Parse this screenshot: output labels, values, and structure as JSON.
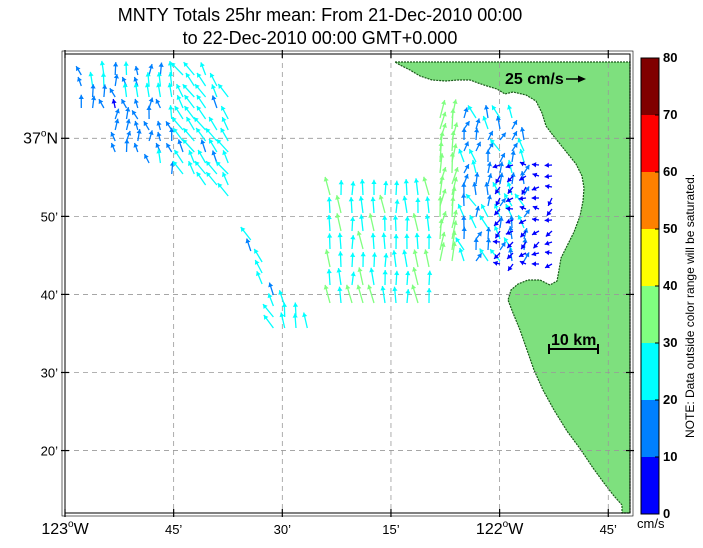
{
  "title": {
    "line1": "MNTY Totals 25hr mean: From 21-Dec-2010 00:00",
    "line2": "to 22-Dec-2010 00:00 GMT+0.000"
  },
  "axes": {
    "x_ticks": [
      {
        "lon": -123.0,
        "label": "123",
        "deg": "o",
        "hemi": "W"
      },
      {
        "lon": -122.75,
        "label": "45’"
      },
      {
        "lon": -122.5,
        "label": "30’"
      },
      {
        "lon": -122.25,
        "label": "15’"
      },
      {
        "lon": -122.0,
        "label": "122",
        "deg": "o",
        "hemi": "W"
      },
      {
        "lon": -121.75,
        "label": "45’"
      }
    ],
    "y_ticks": [
      {
        "lat": 37.0,
        "label": "37",
        "deg": "o",
        "hemi": "N"
      },
      {
        "lat": 36.8333,
        "label": "50’"
      },
      {
        "lat": 36.6667,
        "label": "40’"
      },
      {
        "lat": 36.5,
        "label": "30’"
      },
      {
        "lat": 36.3333,
        "label": "20’"
      }
    ],
    "lon_range": [
      -123.0,
      -121.7
    ],
    "lat_range": [
      36.2,
      37.18
    ],
    "grid": true
  },
  "scale_labels": {
    "speed": "25 cm/s",
    "distance": "10 km"
  },
  "colorbar": {
    "unit": "cm/s",
    "ticks": [
      "0",
      "10",
      "20",
      "30",
      "40",
      "50",
      "60",
      "70",
      "80"
    ],
    "colors": [
      "#0000ff",
      "#0080ff",
      "#00ffff",
      "#80ff80",
      "#ffff00",
      "#ff8000",
      "#ff0000",
      "#800000"
    ],
    "note": "NOTE: Data outside color range will be saturated."
  },
  "land_color": "#7ee07e"
}
